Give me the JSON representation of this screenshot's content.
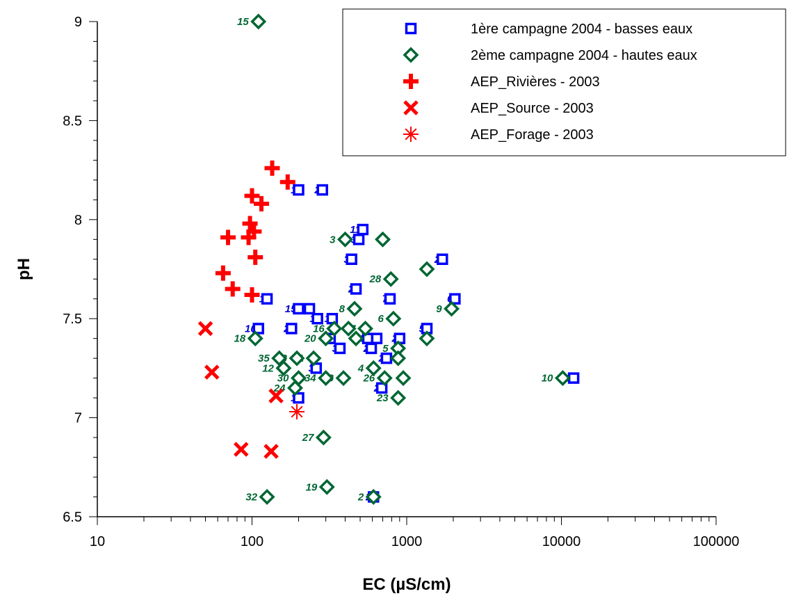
{
  "chart_data": {
    "type": "scatter",
    "title": "",
    "xlabel": "EC (µS/cm)",
    "ylabel": "pH",
    "xscale": "log",
    "xlim": [
      10,
      100000
    ],
    "ylim": [
      6.5,
      9
    ],
    "xticks": [
      "10",
      "100",
      "1000",
      "10000",
      "100000"
    ],
    "yticks": [
      "6.5",
      "7",
      "7.5",
      "8",
      "8.5",
      "9"
    ],
    "legend_position": "top-right",
    "series": [
      {
        "name": "1ère campagne 2004 - basses eaux",
        "marker": "square",
        "color": "#0000ff",
        "points": [
          {
            "x": 200,
            "y": 8.15,
            "label": "1"
          },
          {
            "x": 285,
            "y": 8.15,
            "label": "2"
          },
          {
            "x": 520,
            "y": 7.95,
            "label": "11"
          },
          {
            "x": 490,
            "y": 7.9,
            "label": "3"
          },
          {
            "x": 440,
            "y": 7.8,
            "label": "3"
          },
          {
            "x": 1700,
            "y": 7.8,
            "label": "2"
          },
          {
            "x": 470,
            "y": 7.65,
            "label": "2"
          },
          {
            "x": 2050,
            "y": 7.6,
            "label": "6"
          },
          {
            "x": 780,
            "y": 7.6,
            "label": "7"
          },
          {
            "x": 125,
            "y": 7.6,
            "label": "1"
          },
          {
            "x": 200,
            "y": 7.55,
            "label": "15"
          },
          {
            "x": 235,
            "y": 7.55,
            "label": "1"
          },
          {
            "x": 265,
            "y": 7.5,
            "label": "1"
          },
          {
            "x": 330,
            "y": 7.5,
            "label": "1"
          },
          {
            "x": 110,
            "y": 7.45,
            "label": "10"
          },
          {
            "x": 180,
            "y": 7.45,
            "label": "2"
          },
          {
            "x": 1350,
            "y": 7.45,
            "label": "5"
          },
          {
            "x": 320,
            "y": 7.4,
            "label": "2"
          },
          {
            "x": 560,
            "y": 7.4,
            "label": "8"
          },
          {
            "x": 640,
            "y": 7.4,
            "label": "2"
          },
          {
            "x": 900,
            "y": 7.4,
            "label": "2"
          },
          {
            "x": 370,
            "y": 7.35,
            "label": "3"
          },
          {
            "x": 590,
            "y": 7.35,
            "label": "2"
          },
          {
            "x": 740,
            "y": 7.3,
            "label": "2"
          },
          {
            "x": 260,
            "y": 7.25,
            "label": "3"
          },
          {
            "x": 690,
            "y": 7.15,
            "label": "2"
          },
          {
            "x": 200,
            "y": 7.1,
            "label": "1"
          },
          {
            "x": 12000,
            "y": 7.2,
            "label": "10"
          },
          {
            "x": 610,
            "y": 6.6,
            "label": "2"
          }
        ]
      },
      {
        "name": "2ème campagne 2004 - hautes eaux",
        "marker": "diamond",
        "color": "#006633",
        "points": [
          {
            "x": 110,
            "y": 9.0,
            "label": "15"
          },
          {
            "x": 400,
            "y": 7.9,
            "label": "3"
          },
          {
            "x": 700,
            "y": 7.9,
            "label": ""
          },
          {
            "x": 790,
            "y": 7.7,
            "label": "28"
          },
          {
            "x": 1350,
            "y": 7.75,
            "label": ""
          },
          {
            "x": 460,
            "y": 7.55,
            "label": "8"
          },
          {
            "x": 1950,
            "y": 7.55,
            "label": "9"
          },
          {
            "x": 820,
            "y": 7.5,
            "label": "6"
          },
          {
            "x": 105,
            "y": 7.4,
            "label": "18"
          },
          {
            "x": 340,
            "y": 7.45,
            "label": "16"
          },
          {
            "x": 420,
            "y": 7.45,
            "label": ""
          },
          {
            "x": 540,
            "y": 7.45,
            "label": "7"
          },
          {
            "x": 300,
            "y": 7.4,
            "label": "20"
          },
          {
            "x": 470,
            "y": 7.4,
            "label": ""
          },
          {
            "x": 1350,
            "y": 7.4,
            "label": ""
          },
          {
            "x": 880,
            "y": 7.35,
            "label": "5"
          },
          {
            "x": 150,
            "y": 7.3,
            "label": "35"
          },
          {
            "x": 195,
            "y": 7.3,
            "label": "13"
          },
          {
            "x": 250,
            "y": 7.3,
            "label": "1"
          },
          {
            "x": 880,
            "y": 7.3,
            "label": ""
          },
          {
            "x": 160,
            "y": 7.25,
            "label": "12"
          },
          {
            "x": 610,
            "y": 7.25,
            "label": "4"
          },
          {
            "x": 200,
            "y": 7.2,
            "label": "30"
          },
          {
            "x": 300,
            "y": 7.2,
            "label": "34"
          },
          {
            "x": 390,
            "y": 7.2,
            "label": "33"
          },
          {
            "x": 720,
            "y": 7.2,
            "label": "26"
          },
          {
            "x": 950,
            "y": 7.2,
            "label": ""
          },
          {
            "x": 190,
            "y": 7.15,
            "label": "24"
          },
          {
            "x": 880,
            "y": 7.1,
            "label": "23"
          },
          {
            "x": 10200,
            "y": 7.2,
            "label": "10"
          },
          {
            "x": 290,
            "y": 6.9,
            "label": "27"
          },
          {
            "x": 305,
            "y": 6.65,
            "label": "19"
          },
          {
            "x": 125,
            "y": 6.6,
            "label": "32"
          },
          {
            "x": 610,
            "y": 6.6,
            "label": "2"
          }
        ]
      },
      {
        "name": "AEP_Rivières - 2003",
        "marker": "plus",
        "color": "#ff0000",
        "points": [
          {
            "x": 135,
            "y": 8.26
          },
          {
            "x": 170,
            "y": 8.19
          },
          {
            "x": 100,
            "y": 8.12
          },
          {
            "x": 115,
            "y": 8.08
          },
          {
            "x": 97,
            "y": 7.98
          },
          {
            "x": 103,
            "y": 7.94
          },
          {
            "x": 70,
            "y": 7.91
          },
          {
            "x": 95,
            "y": 7.91
          },
          {
            "x": 105,
            "y": 7.81
          },
          {
            "x": 65,
            "y": 7.73
          },
          {
            "x": 75,
            "y": 7.65
          },
          {
            "x": 100,
            "y": 7.62
          }
        ]
      },
      {
        "name": "AEP_Source - 2003",
        "marker": "x",
        "color": "#ff0000",
        "points": [
          {
            "x": 50,
            "y": 7.45
          },
          {
            "x": 55,
            "y": 7.23
          },
          {
            "x": 143,
            "y": 7.11
          },
          {
            "x": 85,
            "y": 6.84
          },
          {
            "x": 133,
            "y": 6.83
          }
        ]
      },
      {
        "name": "AEP_Forage - 2003",
        "marker": "asterisk",
        "color": "#ff0000",
        "points": [
          {
            "x": 195,
            "y": 7.03
          }
        ]
      }
    ]
  }
}
